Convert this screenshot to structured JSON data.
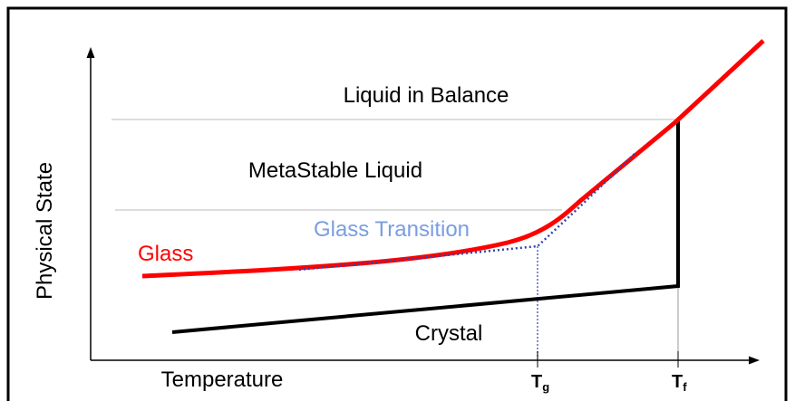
{
  "labels": {
    "liquid_balance": "Liquid in Balance",
    "metastable": "MetaStable Liquid",
    "glass_transition": "Glass Transition",
    "glass": "Glass",
    "crystal": "Crystal",
    "y_axis": "Physical State",
    "x_axis": "Temperature",
    "tg": {
      "main": "T",
      "sub": "g"
    },
    "tf": {
      "main": "T",
      "sub": "f"
    }
  }
}
